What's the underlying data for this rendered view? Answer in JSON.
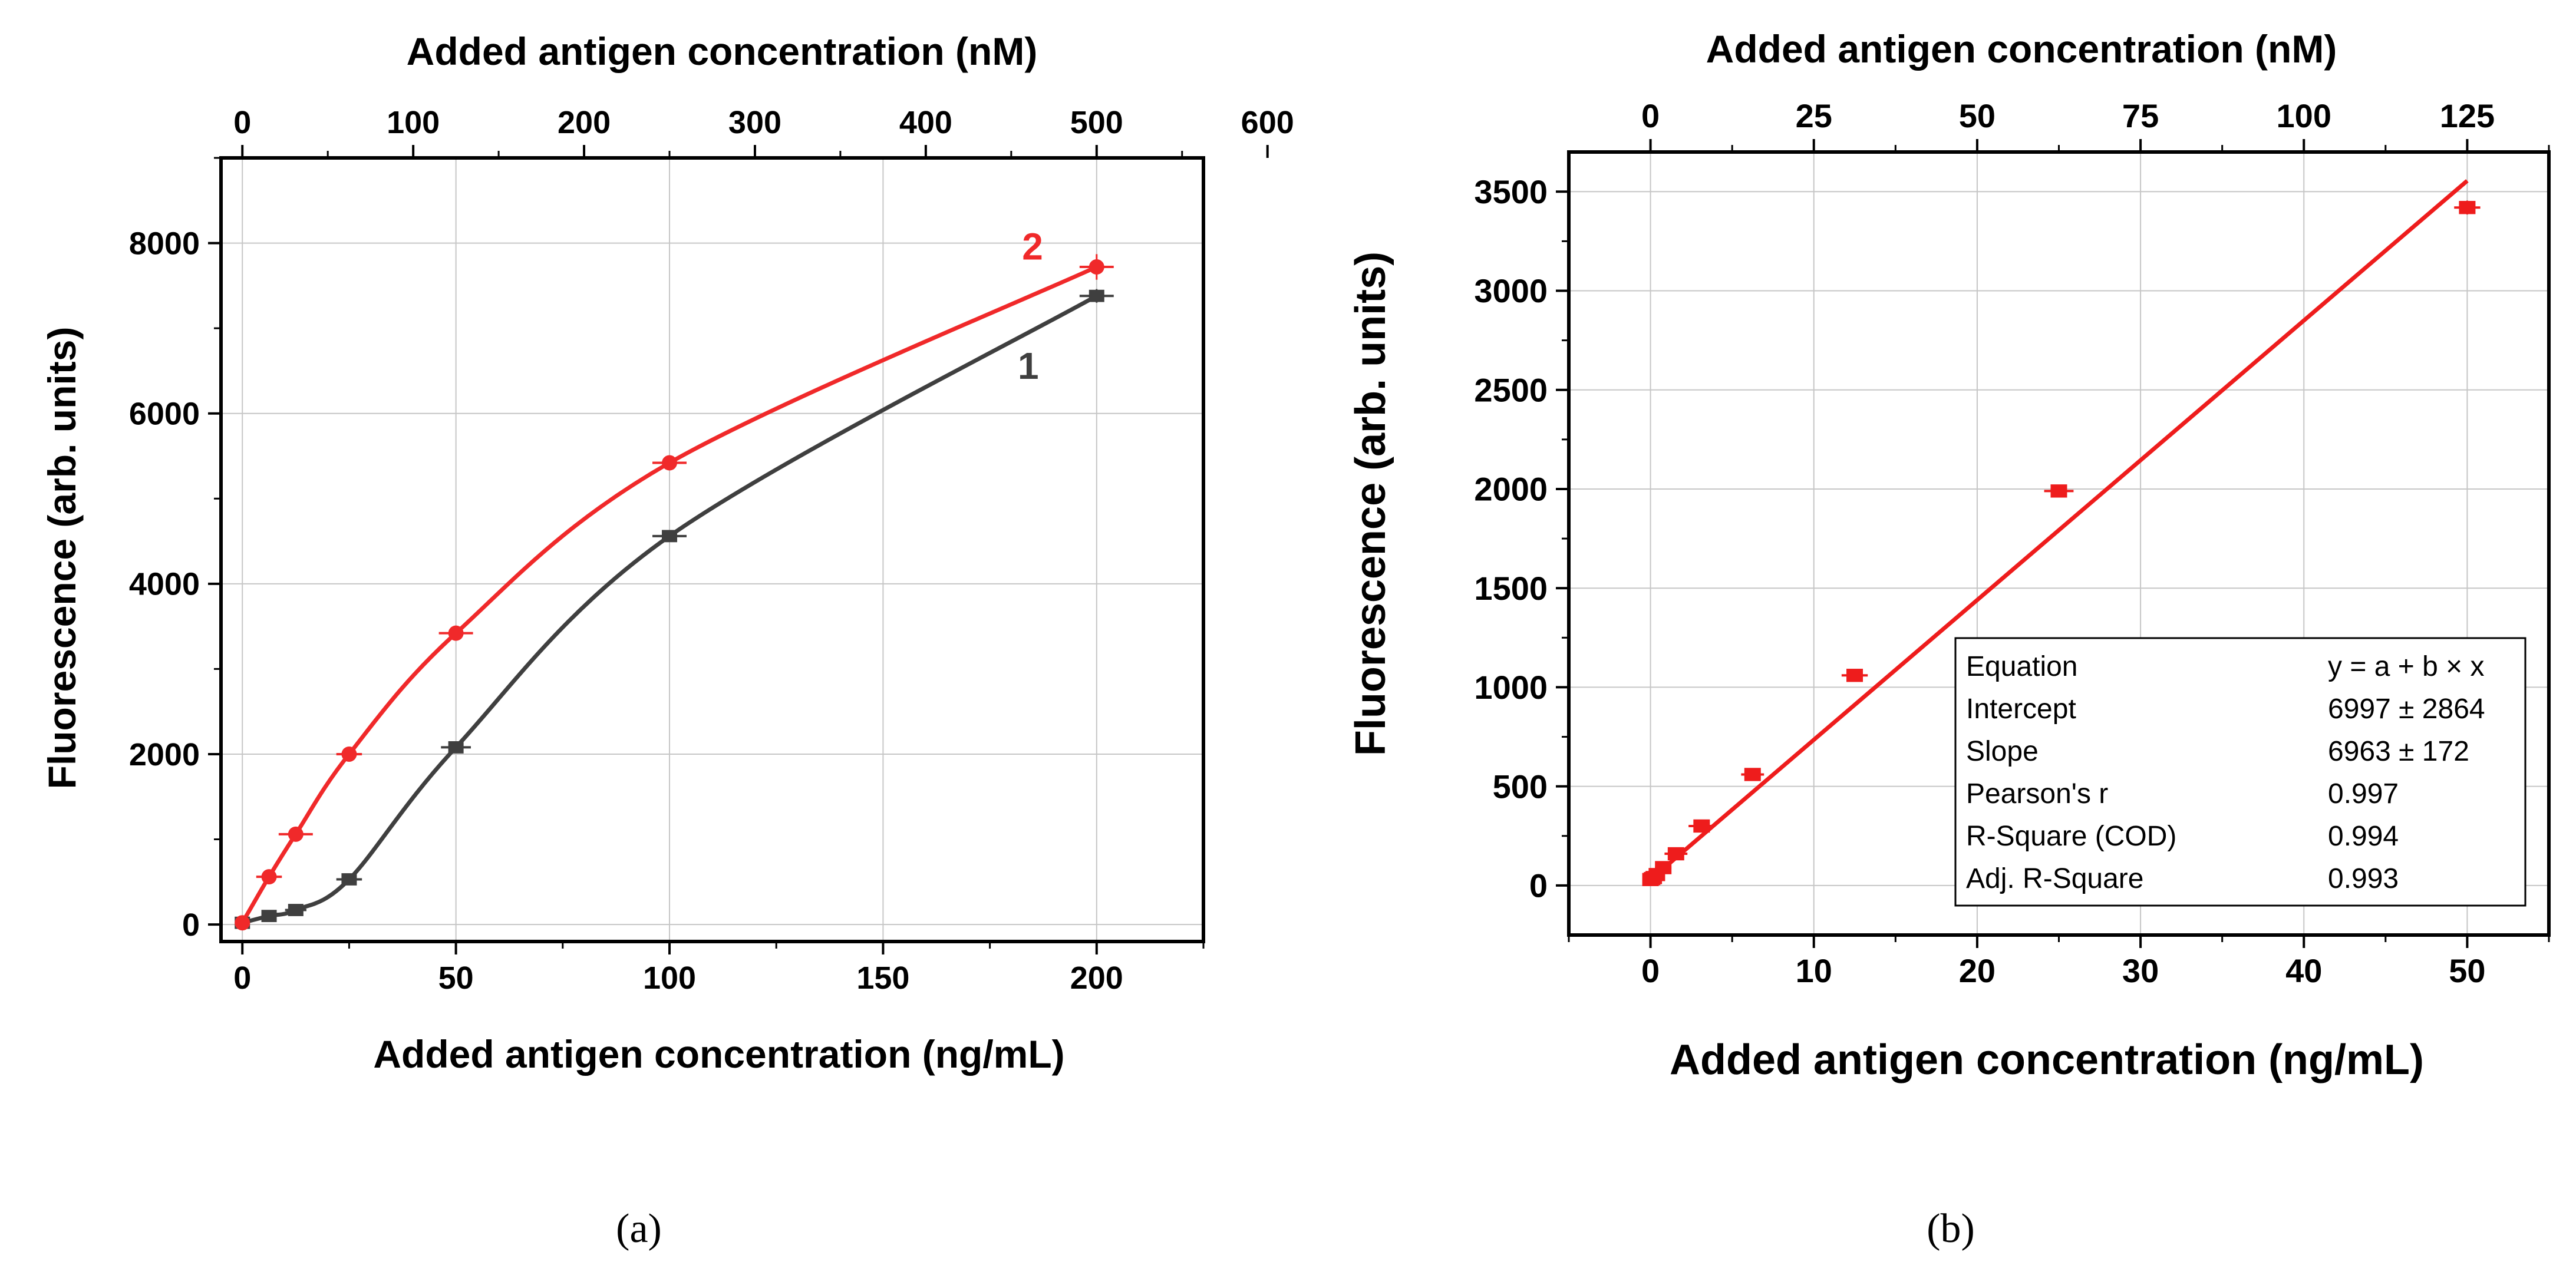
{
  "chart_data": [
    {
      "panel": "a",
      "caption": "(a)",
      "type": "line",
      "title": "",
      "xlabel": "Added antigen concentration (ng/mL)",
      "x2label": "Added antigen concentration (nM)",
      "ylabel": "Fluorescence (arb. units)",
      "xlim": [
        -5,
        225
      ],
      "x2lim": [
        -12.5,
        562.5
      ],
      "ylim": [
        -200,
        9000
      ],
      "xticks": [
        0,
        50,
        100,
        150,
        200
      ],
      "x2ticks": [
        0,
        100,
        200,
        300,
        400,
        500,
        600
      ],
      "yticks": [
        0,
        2000,
        4000,
        6000,
        8000
      ],
      "grid": true,
      "series": [
        {
          "name": "1",
          "color": "#3f3f3f",
          "x": [
            0,
            6.25,
            12.5,
            25,
            50,
            100,
            200
          ],
          "y": [
            20,
            100,
            170,
            530,
            2080,
            4560,
            7380
          ],
          "xerr": [
            0,
            1.5,
            2.5,
            3,
            3.5,
            4,
            4
          ],
          "yerr": [
            0,
            30,
            40,
            40,
            50,
            70,
            80
          ]
        },
        {
          "name": "2",
          "color": "#f0292a",
          "x": [
            0,
            6.25,
            12.5,
            25,
            50,
            100,
            200
          ],
          "y": [
            20,
            560,
            1060,
            2000,
            3420,
            5420,
            7720
          ],
          "xerr": [
            0,
            3,
            4,
            3,
            4,
            4,
            4
          ],
          "yerr": [
            0,
            30,
            30,
            30,
            40,
            50,
            150
          ]
        }
      ]
    },
    {
      "panel": "b",
      "caption": "(b)",
      "type": "scatter",
      "title": "",
      "xlabel": "Added antigen concentration (ng/mL)",
      "x2label": "Added antigen concentration (nM)",
      "ylabel": "Fluorescence (arb. units)",
      "xlim": [
        -5,
        55
      ],
      "x2lim": [
        -12.5,
        137.5
      ],
      "ylim": [
        -250,
        3700
      ],
      "xticks": [
        0,
        10,
        20,
        30,
        40,
        50
      ],
      "x2ticks": [
        0,
        25,
        50,
        75,
        100,
        125
      ],
      "yticks": [
        0,
        500,
        1000,
        1500,
        2000,
        2500,
        3000,
        3500
      ],
      "grid": true,
      "series": [
        {
          "name": "data",
          "color": "#ee1c1c",
          "x": [
            0,
            0.1,
            0.2,
            0.39,
            0.78,
            1.56,
            3.13,
            6.25,
            12.5,
            25,
            50
          ],
          "y": [
            30,
            35,
            40,
            55,
            90,
            160,
            300,
            560,
            1060,
            1990,
            3420
          ],
          "xerr": [
            0.3,
            0.3,
            0.3,
            0.4,
            0.5,
            0.7,
            0.8,
            0.7,
            0.8,
            0.9,
            0.8
          ],
          "yerr": [
            15,
            15,
            15,
            20,
            20,
            25,
            25,
            30,
            30,
            30,
            35
          ]
        }
      ],
      "fit": {
        "x_range": [
          -0.3,
          50
        ],
        "slope_plot": 70.5,
        "intercept_plot": 30,
        "color": "#ee1c1c"
      },
      "fit_table": {
        "rows": [
          {
            "label": "Equation",
            "value": "y = a + b × x"
          },
          {
            "label": "Intercept",
            "value": "6997 ± 2864"
          },
          {
            "label": "Slope",
            "value": "6963 ± 172"
          },
          {
            "label": "Pearson's r",
            "value": "0.997"
          },
          {
            "label": "R-Square (COD)",
            "value": "0.994"
          },
          {
            "label": "Adj. R-Square",
            "value": "0.993"
          }
        ]
      }
    }
  ]
}
